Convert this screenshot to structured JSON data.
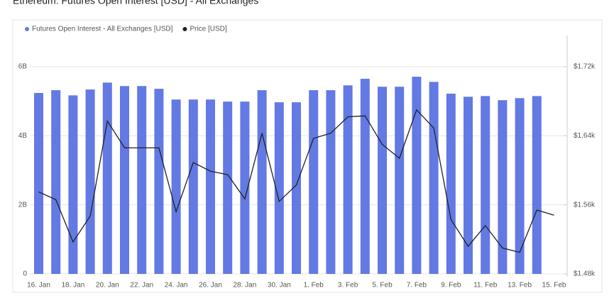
{
  "chart_data": {
    "type": "bar-line",
    "title": "Ethereum: Futures Open Interest [USD] - All Exchanges",
    "categories": [
      "16. Jan",
      null,
      "18. Jan",
      null,
      "20. Jan",
      null,
      "22. Jan",
      null,
      "24. Jan",
      null,
      "26. Jan",
      null,
      "28. Jan",
      null,
      "30. Jan",
      null,
      "1. Feb",
      null,
      "3. Feb",
      null,
      "5. Feb",
      null,
      "7. Feb",
      null,
      "9. Feb",
      null,
      "11. Feb",
      null,
      "13. Feb",
      null,
      "15. Feb"
    ],
    "series": [
      {
        "name": "Futures Open Interest - All Exchanges [USD]",
        "color": "#6379e4",
        "kind": "bar",
        "values": [
          5.24,
          5.32,
          5.17,
          5.34,
          5.54,
          5.44,
          5.44,
          5.36,
          5.05,
          5.05,
          5.05,
          4.99,
          4.99,
          5.32,
          4.97,
          4.97,
          5.32,
          5.32,
          5.46,
          5.65,
          5.42,
          5.42,
          5.71,
          5.56,
          5.22,
          5.13,
          5.15,
          5.03,
          5.09,
          5.15,
          null
        ]
      },
      {
        "name": "Price [USD]",
        "color": "#222222",
        "kind": "line",
        "axis": "y2",
        "values": [
          1.575,
          1.566,
          1.517,
          1.547,
          1.657,
          1.626,
          1.626,
          1.626,
          1.552,
          1.609,
          1.599,
          1.595,
          1.567,
          1.643,
          1.564,
          1.583,
          1.637,
          1.643,
          1.662,
          1.663,
          1.63,
          1.614,
          1.67,
          1.649,
          1.543,
          1.512,
          1.536,
          1.51,
          1.505,
          1.554,
          1.548
        ]
      }
    ],
    "ylim": [
      0,
      6
    ],
    "yticks": [
      {
        "value": 0,
        "label": "0"
      },
      {
        "value": 2,
        "label": "2B"
      },
      {
        "value": 4,
        "label": "4B"
      },
      {
        "value": 6,
        "label": "6B"
      }
    ],
    "y2lim": [
      1.48,
      1.72
    ],
    "y2ticks": [
      {
        "value": 1.48,
        "label": "$1.48k"
      },
      {
        "value": 1.56,
        "label": "$1.56k"
      },
      {
        "value": 1.64,
        "label": "$1.64k"
      },
      {
        "value": 1.72,
        "label": "$1.72k"
      }
    ],
    "grid": true
  }
}
